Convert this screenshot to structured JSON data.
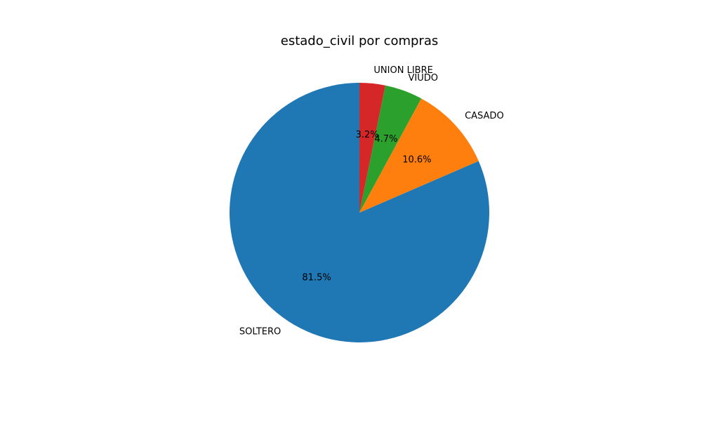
{
  "chart_data": {
    "type": "pie",
    "title": "estado_civil por compras",
    "labels": [
      "SOLTERO",
      "CASADO",
      "VIUDO",
      "UNION LIBRE"
    ],
    "values": [
      81.5,
      10.6,
      4.7,
      3.2
    ],
    "value_labels": [
      "81.5%",
      "10.6%",
      "4.7%",
      "3.2%"
    ],
    "colors": [
      "#1f77b4",
      "#ff7f0e",
      "#2ca02c",
      "#d62728"
    ],
    "start_angle_deg": 90,
    "direction": "counterclockwise",
    "legend": "none"
  }
}
